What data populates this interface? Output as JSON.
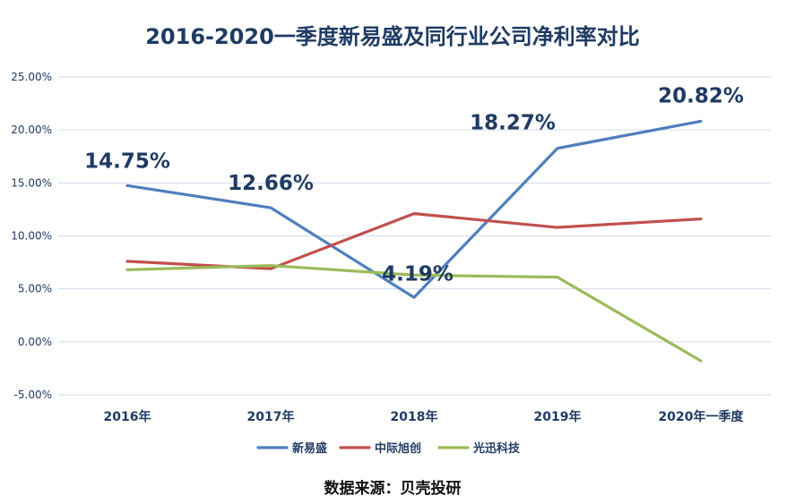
{
  "chart_data": {
    "type": "line",
    "title": "2016-2020一季度新易盛及同行业公司净利率对比",
    "categories": [
      "2016年",
      "2017年",
      "2018年",
      "2019年",
      "2020年一季度"
    ],
    "yticks": [
      "25.00%",
      "20.00%",
      "15.00%",
      "10.00%",
      "5.00%",
      "0.00%",
      "-5.00%"
    ],
    "ylim": [
      -5,
      25
    ],
    "grid": true,
    "legend_position": "bottom",
    "series": [
      {
        "name": "新易盛",
        "color": "#4f7fbd",
        "values": [
          14.75,
          12.66,
          4.19,
          18.27,
          20.82
        ],
        "labels": [
          "14.75%",
          "12.66%",
          "4.19%",
          "18.27%",
          "20.82%"
        ]
      },
      {
        "name": "中际旭创",
        "color": "#c0504d",
        "values": [
          7.6,
          6.9,
          12.1,
          10.8,
          11.6
        ]
      },
      {
        "name": "光迅科技",
        "color": "#9bbb59",
        "values": [
          6.8,
          7.2,
          6.3,
          6.1,
          -1.8
        ]
      }
    ]
  },
  "footer": {
    "source": "数据来源：贝壳投研"
  }
}
